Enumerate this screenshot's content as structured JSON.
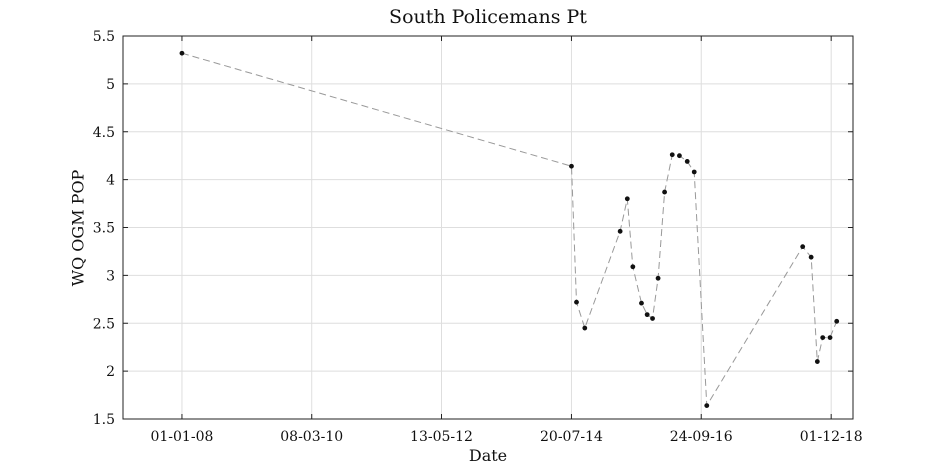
{
  "chart_data": {
    "type": "line",
    "title": "South Policemans Pt",
    "xlabel": "Date",
    "ylabel": "WQ OGM POP",
    "x_axis": {
      "type": "date",
      "tick_labels": [
        "01-01-08",
        "08-03-10",
        "13-05-12",
        "20-07-14",
        "24-09-16",
        "01-12-18"
      ],
      "tick_dates": [
        "2008-01-01",
        "2010-03-08",
        "2012-05-13",
        "2014-07-20",
        "2016-09-24",
        "2018-12-01"
      ],
      "range": [
        "2007-01-04",
        "2019-04-14"
      ]
    },
    "y_axis": {
      "range": [
        1.5,
        5.5
      ],
      "tick_labels": [
        "1.5",
        "2",
        "2.5",
        "3",
        "3.5",
        "4",
        "4.5",
        "5",
        "5.5"
      ],
      "ticks": [
        1.5,
        2,
        2.5,
        3,
        3.5,
        4,
        4.5,
        5,
        5.5
      ]
    },
    "grid": true,
    "legend": "none",
    "line_style": "dashed",
    "line_color": "#999999",
    "marker_color": "#111111",
    "series": [
      {
        "points": [
          {
            "date": "2008-01-01",
            "y": 5.32
          },
          {
            "date": "2014-07-20",
            "y": 4.14
          },
          {
            "date": "2014-08-20",
            "y": 2.72
          },
          {
            "date": "2014-10-10",
            "y": 2.45
          },
          {
            "date": "2015-05-15",
            "y": 3.46
          },
          {
            "date": "2015-06-28",
            "y": 3.8
          },
          {
            "date": "2015-08-01",
            "y": 3.09
          },
          {
            "date": "2015-09-23",
            "y": 2.71
          },
          {
            "date": "2015-10-28",
            "y": 2.59
          },
          {
            "date": "2015-11-30",
            "y": 2.55
          },
          {
            "date": "2016-01-03",
            "y": 2.97
          },
          {
            "date": "2016-02-12",
            "y": 3.87
          },
          {
            "date": "2016-03-30",
            "y": 4.26
          },
          {
            "date": "2016-05-13",
            "y": 4.25
          },
          {
            "date": "2016-06-30",
            "y": 4.19
          },
          {
            "date": "2016-08-12",
            "y": 4.08
          },
          {
            "date": "2016-10-28",
            "y": 1.64
          },
          {
            "date": "2018-06-09",
            "y": 3.3
          },
          {
            "date": "2018-07-31",
            "y": 3.19
          },
          {
            "date": "2018-09-07",
            "y": 2.1
          },
          {
            "date": "2018-10-10",
            "y": 2.35
          },
          {
            "date": "2018-11-24",
            "y": 2.35
          },
          {
            "date": "2019-01-04",
            "y": 2.52
          }
        ]
      }
    ]
  }
}
